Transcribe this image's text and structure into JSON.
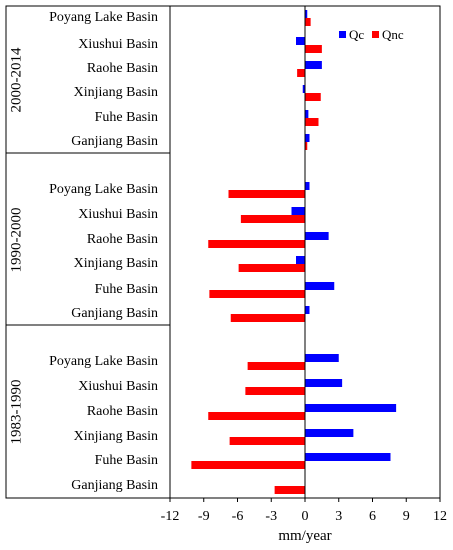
{
  "chart_data": {
    "type": "bar",
    "orientation": "horizontal",
    "xlabel": "mm/year",
    "xlim": [
      -12,
      12
    ],
    "xticks": [
      -12,
      -9,
      -6,
      -3,
      0,
      3,
      6,
      9,
      12
    ],
    "grid": false,
    "legend_position": "top-right",
    "colors": {
      "Qc": "#0000ff",
      "Qnc": "#ff0000"
    },
    "series_names": [
      "Qc",
      "Qnc"
    ],
    "groups": [
      {
        "period": "2000-2014",
        "basins": [
          {
            "name": "Poyang Lake Basin",
            "Qc": 0.2,
            "Qnc": 0.5
          },
          {
            "name": "Xiushui Basin",
            "Qc": -0.8,
            "Qnc": 1.5
          },
          {
            "name": "Raohe Basin",
            "Qc": 1.5,
            "Qnc": -0.7
          },
          {
            "name": "Xinjiang Basin",
            "Qc": -0.2,
            "Qnc": 1.4
          },
          {
            "name": "Fuhe Basin",
            "Qc": 0.3,
            "Qnc": 1.2
          },
          {
            "name": "Ganjiang Basin",
            "Qc": 0.4,
            "Qnc": 0.2
          }
        ]
      },
      {
        "period": "1990-2000",
        "basins": [
          {
            "name": "Poyang Lake Basin",
            "Qc": 0.4,
            "Qnc": -6.8
          },
          {
            "name": "Xiushui Basin",
            "Qc": -1.2,
            "Qnc": -5.7
          },
          {
            "name": "Raohe Basin",
            "Qc": 2.1,
            "Qnc": -8.6
          },
          {
            "name": "Xinjiang Basin",
            "Qc": -0.8,
            "Qnc": -5.9
          },
          {
            "name": "Fuhe Basin",
            "Qc": 2.6,
            "Qnc": -8.5
          },
          {
            "name": "Ganjiang Basin",
            "Qc": 0.4,
            "Qnc": -6.6
          }
        ]
      },
      {
        "period": "1983-1990",
        "basins": [
          {
            "name": "Poyang Lake Basin",
            "Qc": 3.0,
            "Qnc": -5.1
          },
          {
            "name": "Xiushui Basin",
            "Qc": 3.3,
            "Qnc": -5.3
          },
          {
            "name": "Raohe Basin",
            "Qc": 8.1,
            "Qnc": -8.6
          },
          {
            "name": "Xinjiang Basin",
            "Qc": 4.3,
            "Qnc": -6.7
          },
          {
            "name": "Fuhe Basin",
            "Qc": 7.6,
            "Qnc": -10.1
          },
          {
            "name": "Ganjiang Basin",
            "Qc": 0.0,
            "Qnc": -2.7
          }
        ]
      }
    ]
  }
}
